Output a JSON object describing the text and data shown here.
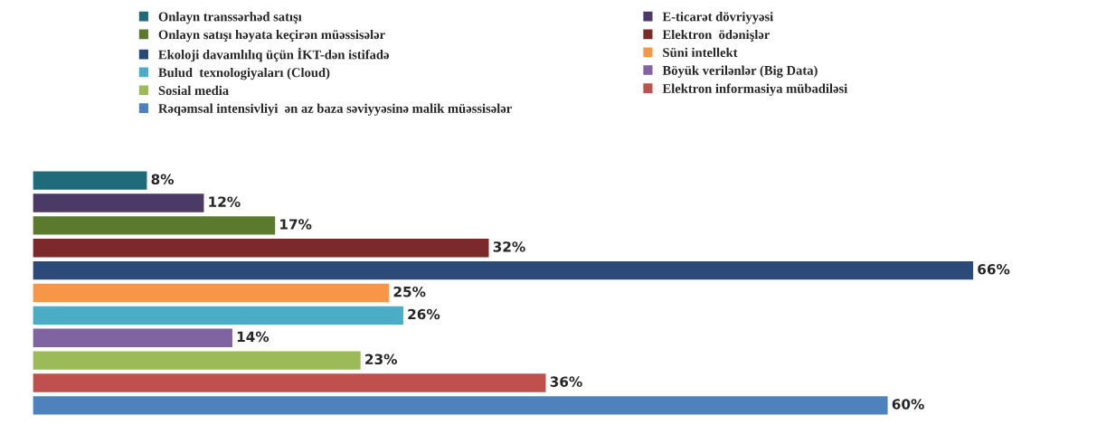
{
  "chart_data": {
    "type": "bar",
    "orientation": "horizontal",
    "stacked": true,
    "legend": "top",
    "categories": [
      null,
      null,
      null,
      null,
      null,
      null,
      null,
      null,
      null,
      null,
      null
    ],
    "series": [
      {
        "name": "Onlayn transsərhəd satışı",
        "color": "#1f6b7a",
        "values": [
          8,
          null,
          null,
          null,
          null,
          null,
          null,
          null,
          null,
          null,
          null
        ],
        "value_labels": [
          "8%",
          null,
          null,
          null,
          null,
          null,
          null,
          null,
          null,
          null,
          null
        ]
      },
      {
        "name": "E-ticarət dövriyyəsi",
        "color": "#4b3a66",
        "values": [
          null,
          12,
          null,
          null,
          null,
          null,
          null,
          null,
          null,
          null,
          null
        ],
        "value_labels": [
          null,
          "12%",
          null,
          null,
          null,
          null,
          null,
          null,
          null,
          null,
          null
        ]
      },
      {
        "name": "Onlayn satışı həyata keçirən müəssisələr",
        "color": "#5b7a2e",
        "values": [
          null,
          null,
          17,
          null,
          null,
          null,
          null,
          null,
          null,
          null,
          null
        ],
        "value_labels": [
          null,
          null,
          "17%",
          null,
          null,
          null,
          null,
          null,
          null,
          null,
          null
        ]
      },
      {
        "name": "Elektron  ödənişlər",
        "color": "#7a2a2a",
        "values": [
          null,
          null,
          null,
          32,
          null,
          null,
          null,
          null,
          null,
          null,
          null
        ],
        "value_labels": [
          null,
          null,
          null,
          "32%",
          null,
          null,
          null,
          null,
          null,
          null,
          null
        ]
      },
      {
        "name": "Ekoloji davamlılıq üçün İKT-dən istifadə",
        "color": "#2b4a78",
        "values": [
          null,
          null,
          null,
          null,
          66,
          null,
          null,
          null,
          null,
          null,
          null
        ],
        "value_labels": [
          null,
          null,
          null,
          null,
          "66%",
          null,
          null,
          null,
          null,
          null,
          null
        ]
      },
      {
        "name": "Süni intellekt",
        "color": "#f79646",
        "values": [
          null,
          null,
          null,
          null,
          null,
          25,
          null,
          null,
          null,
          null,
          null
        ],
        "value_labels": [
          null,
          null,
          null,
          null,
          null,
          "25%",
          null,
          null,
          null,
          null,
          null
        ]
      },
      {
        "name": "Bulud  texnologiyaları (Cloud)",
        "color": "#4bacc6",
        "values": [
          null,
          null,
          null,
          null,
          null,
          null,
          26,
          null,
          null,
          null,
          null
        ],
        "value_labels": [
          null,
          null,
          null,
          null,
          null,
          null,
          "26%",
          null,
          null,
          null,
          null
        ]
      },
      {
        "name": "Böyük verilənlər (Big Data)",
        "color": "#8064a2",
        "values": [
          null,
          null,
          null,
          null,
          null,
          null,
          null,
          14,
          null,
          null,
          null
        ],
        "value_labels": [
          null,
          null,
          null,
          null,
          null,
          null,
          null,
          "14%",
          null,
          null,
          null
        ]
      },
      {
        "name": "Sosial media",
        "color": "#9bbb59",
        "values": [
          null,
          null,
          null,
          null,
          null,
          null,
          null,
          null,
          23,
          null,
          null
        ],
        "value_labels": [
          null,
          null,
          null,
          null,
          null,
          null,
          null,
          null,
          "23%",
          null,
          null
        ]
      },
      {
        "name": "Elektron informasiya mübadiləsi",
        "color": "#c0504d",
        "values": [
          null,
          null,
          null,
          null,
          null,
          null,
          null,
          null,
          null,
          36,
          null
        ],
        "value_labels": [
          null,
          null,
          null,
          null,
          null,
          null,
          null,
          null,
          null,
          "36%",
          null
        ]
      },
      {
        "name": "Rəqəmsal intensivliyi  ən az baza səviyyəsinə malik müəssisələr",
        "color": "#4f81bd",
        "values": [
          null,
          null,
          null,
          null,
          null,
          null,
          null,
          null,
          null,
          null,
          60
        ],
        "value_labels": [
          null,
          null,
          null,
          null,
          null,
          null,
          null,
          null,
          null,
          null,
          "60%"
        ]
      }
    ]
  }
}
